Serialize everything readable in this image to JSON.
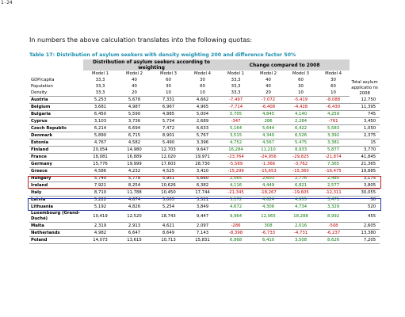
{
  "page_label": "1-24",
  "intro": "In numbers the above calculation translates into the following quotas:",
  "caption": "Table 17: Distribution of asylum seekers with density weighting 200 and difference factor 50%",
  "header": {
    "group1": "Distribution of asylum seekers according to weighting",
    "group2": "Change compared to 2008",
    "models": [
      "Model 1",
      "Model 2",
      "Model 3",
      "Model 4",
      "Model 1",
      "Model 2",
      "Model 3",
      "Model 4"
    ],
    "total_label": "Total asylum applicatio ns 2008",
    "weights": [
      {
        "label": "GDP/capita",
        "values": [
          "33,3",
          "40",
          "60",
          "30",
          "33,3",
          "40",
          "60",
          "30"
        ]
      },
      {
        "label": "Population",
        "values": [
          "33,3",
          "40",
          "30",
          "60",
          "33,3",
          "40",
          "30",
          "60"
        ]
      },
      {
        "label": "Density",
        "values": [
          "33,3",
          "20",
          "10",
          "10",
          "33,3",
          "20",
          "10",
          "10"
        ]
      }
    ]
  },
  "rows": [
    {
      "country": "Austria",
      "dist": [
        "5,253",
        "5,678",
        "7,331",
        "4,662"
      ],
      "change": [
        "-7,497",
        "-7,072",
        "-5,419",
        "-8,088"
      ],
      "total": "12,750"
    },
    {
      "country": "Belgium",
      "dist": [
        "3,681",
        "4,987",
        "6,967",
        "4,965"
      ],
      "change": [
        "-7,714",
        "-6,408",
        "-4,428",
        "-6,430"
      ],
      "total": "11,395"
    },
    {
      "country": "Bulgaria",
      "dist": [
        "6,450",
        "5,590",
        "4,885",
        "5,004"
      ],
      "change": [
        "5,705",
        "4,845",
        "4,140",
        "4,259"
      ],
      "total": "745"
    },
    {
      "country": "Cyprus",
      "dist": [
        "3,103",
        "3,736",
        "5,734",
        "2,689"
      ],
      "change": [
        "-347",
        "286",
        "2,284",
        "-761"
      ],
      "total": "3,450"
    },
    {
      "country": "Czech Republic",
      "dist": [
        "6,214",
        "6,694",
        "7,472",
        "6,633"
      ],
      "change": [
        "5,164",
        "5,644",
        "6,422",
        "5,583"
      ],
      "total": "1,050"
    },
    {
      "country": "Denmark",
      "dist": [
        "5,890",
        "6,715",
        "8,901",
        "5,767"
      ],
      "change": [
        "3,515",
        "4,340",
        "6,526",
        "3,392"
      ],
      "total": "2,375"
    },
    {
      "country": "Estonia",
      "dist": [
        "4,767",
        "4,582",
        "5,490",
        "3,396"
      ],
      "change": [
        "4,752",
        "4,567",
        "5,475",
        "3,381"
      ],
      "total": "15"
    },
    {
      "country": "Finland",
      "dist": [
        "20,054",
        "14,980",
        "12,703",
        "9,647"
      ],
      "change": [
        "16,284",
        "11,210",
        "8,933",
        "5,877"
      ],
      "total": "3,770"
    },
    {
      "country": "France",
      "dist": [
        "18,081",
        "16,889",
        "12,020",
        "19,971"
      ],
      "change": [
        "-23,764",
        "-24,956",
        "-29,825",
        "-21,874"
      ],
      "total": "41,845"
    },
    {
      "country": "Germany",
      "dist": [
        "15,776",
        "19,999",
        "17,603",
        "28,730"
      ],
      "change": [
        "-5,589",
        "-1,366",
        "-3,762",
        "7,365"
      ],
      "total": "21,365"
    },
    {
      "country": "Greece",
      "dist": [
        "4,586",
        "4,232",
        "4,525",
        "3,410"
      ],
      "change": [
        "-15,299",
        "-15,653",
        "-15,360",
        "-16,475"
      ],
      "total": "19,885"
    },
    {
      "country": "Hungary",
      "dist": [
        "5,740",
        "5,778",
        "5,951",
        "5,660"
      ],
      "change": [
        "2,565",
        "2,603",
        "2,776",
        "2,485"
      ],
      "total": "3,175"
    },
    {
      "country": "Ireland",
      "dist": [
        "7,921",
        "8,254",
        "10,626",
        "6,382"
      ],
      "change": [
        "4,116",
        "4,449",
        "6,821",
        "2,577"
      ],
      "total": "3,805"
    },
    {
      "country": "Italy",
      "dist": [
        "8,710",
        "11,788",
        "10,450",
        "17,744"
      ],
      "change": [
        "-21,345",
        "-18,267",
        "-19,605",
        "-12,311"
      ],
      "total": "30,055"
    },
    {
      "country": "Latvia",
      "dist": [
        "5,222",
        "4,674",
        "5,005",
        "3,521"
      ],
      "change": [
        "5,172",
        "4,624",
        "4,955",
        "3,471"
      ],
      "total": "50"
    },
    {
      "country": "Lithuania",
      "dist": [
        "5,192",
        "4,826",
        "5,254",
        "3,849"
      ],
      "change": [
        "4,672",
        "4,306",
        "4,734",
        "3,329"
      ],
      "total": "520"
    },
    {
      "country": "Luxembourg (Grand-Duché)",
      "dist": [
        "10,419",
        "12,520",
        "18,743",
        "9,447"
      ],
      "change": [
        "9,964",
        "12,065",
        "18,288",
        "8,992"
      ],
      "total": "455"
    },
    {
      "country": "Malta",
      "dist": [
        "2,319",
        "2,913",
        "4,621",
        "2,097"
      ],
      "change": [
        "-286",
        "308",
        "2,016",
        "-508"
      ],
      "total": "2,605"
    },
    {
      "country": "Netherlands",
      "dist": [
        "4,982",
        "6,647",
        "8,649",
        "7,143"
      ],
      "change": [
        "-8,398",
        "-6,733",
        "-4,731",
        "-6,237"
      ],
      "total": "13,380"
    },
    {
      "country": "Poland",
      "dist": [
        "14,073",
        "13,615",
        "10,713",
        "15,831"
      ],
      "change": [
        "6,868",
        "6,410",
        "3,508",
        "8,626"
      ],
      "total": "7,205"
    }
  ],
  "colors": {
    "caption": "#1a8fb0",
    "negative": "#c00000",
    "positive": "#0a7a0a",
    "highlight_finland": "#c02020",
    "highlight_germany": "#2a3aa0",
    "header_bg": "#d3d3d3"
  }
}
